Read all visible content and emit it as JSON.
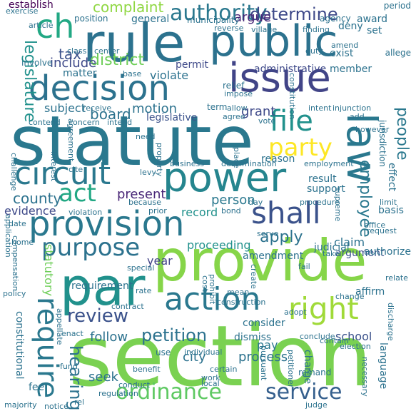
{
  "words": [
    {
      "text": "section",
      "color": "#7ad151",
      "rot": 0
    },
    {
      "text": "statute",
      "color": "#2a788e",
      "rot": 0
    },
    {
      "text": "provide",
      "color": "#86d549",
      "rot": 0
    },
    {
      "text": "rule",
      "color": "#2c728e",
      "rot": 0
    },
    {
      "text": "public",
      "color": "#2c728e",
      "rot": 0
    },
    {
      "text": "law",
      "color": "#2a788e",
      "rot": 90
    },
    {
      "text": "power",
      "color": "#25858e",
      "rot": 0
    },
    {
      "text": "issue",
      "color": "#414487",
      "rot": 0
    },
    {
      "text": "provision",
      "color": "#2a788e",
      "rot": 0
    },
    {
      "text": "par",
      "color": "#21918c",
      "rot": 0
    },
    {
      "text": "decision",
      "color": "#2c728e",
      "rot": 0
    },
    {
      "text": "ch",
      "color": "#22a884",
      "rot": 0
    },
    {
      "text": "circuit",
      "color": "#2a788e",
      "rot": 0
    },
    {
      "text": "shall",
      "color": "#3b528b",
      "rot": 0
    },
    {
      "text": "action",
      "color": "#2a788e",
      "rot": 0
    },
    {
      "text": "require",
      "color": "#2a788e",
      "rot": 90
    },
    {
      "text": "right",
      "color": "#a0da39",
      "rot": 0
    },
    {
      "text": "service",
      "color": "#355f8d",
      "rot": 0
    },
    {
      "text": "ordinance",
      "color": "#5ec962",
      "rot": 0
    },
    {
      "text": "file",
      "color": "#21918c",
      "rot": 0
    },
    {
      "text": "party",
      "color": "#fde725",
      "rot": 0
    },
    {
      "text": "authority",
      "color": "#2a788e",
      "rot": 0
    },
    {
      "text": "purpose",
      "color": "#2c728e",
      "rot": 0
    },
    {
      "text": "act",
      "color": "#22a884",
      "rot": 0
    },
    {
      "text": "determine",
      "color": "#3e4989",
      "rot": 0
    },
    {
      "text": "district",
      "color": "#6ece58",
      "rot": 0
    },
    {
      "text": "complaint",
      "color": "#90d743",
      "rot": 0
    },
    {
      "text": "review",
      "color": "#3b528b",
      "rot": 0
    },
    {
      "text": "hearing",
      "color": "#2c728e",
      "rot": 90
    },
    {
      "text": "petition",
      "color": "#2c728e",
      "rot": 0
    },
    {
      "text": "employee",
      "color": "#2a788e",
      "rot": 90
    },
    {
      "text": "legislature",
      "color": "#21918c",
      "rot": 90
    },
    {
      "text": "people",
      "color": "#2a788e",
      "rot": 90
    },
    {
      "text": "apply",
      "color": "#2c728e",
      "rot": 0
    },
    {
      "text": "county",
      "color": "#2c728e",
      "rot": 0
    },
    {
      "text": "tax",
      "color": "#3b528b",
      "rot": 0
    },
    {
      "text": "board",
      "color": "#2c728e",
      "rot": 0
    },
    {
      "text": "include",
      "color": "#3e4989",
      "rot": 0
    },
    {
      "text": "grant",
      "color": "#3e4989",
      "rot": 0
    },
    {
      "text": "motion",
      "color": "#2c728e",
      "rot": 0
    },
    {
      "text": "argue",
      "color": "#482677",
      "rot": 0
    },
    {
      "text": "present",
      "color": "#482677",
      "rot": 0
    },
    {
      "text": "person",
      "color": "#2a788e",
      "rot": 0
    },
    {
      "text": "proceeding",
      "color": "#21918c",
      "rot": 0
    },
    {
      "text": "claim",
      "color": "#2c728e",
      "rot": 0
    },
    {
      "text": "argument",
      "color": "#3b528b",
      "rot": 0
    },
    {
      "text": "seek",
      "color": "#2c728e",
      "rot": 0
    },
    {
      "text": "city",
      "color": "#2c728e",
      "rot": 0
    },
    {
      "text": "pay",
      "color": "#2a788e",
      "rot": 0
    },
    {
      "text": "process",
      "color": "#2c728e",
      "rot": 0
    },
    {
      "text": "follow",
      "color": "#2c728e",
      "rot": 0
    },
    {
      "text": "record",
      "color": "#21918c",
      "rot": 0
    },
    {
      "text": "subject",
      "color": "#2c728e",
      "rot": 0
    },
    {
      "text": "statutory",
      "color": "#6ece58",
      "rot": 90
    },
    {
      "text": "year",
      "color": "#414487",
      "rot": 0
    },
    {
      "text": "evidence",
      "color": "#3e4989",
      "rot": 0
    },
    {
      "text": "school",
      "color": "#3b528b",
      "rot": 0
    },
    {
      "text": "establish",
      "color": "#440154",
      "rot": 0
    },
    {
      "text": "consider",
      "color": "#2c728e",
      "rot": 0
    },
    {
      "text": "requirement",
      "color": "#2c728e",
      "rot": 0
    },
    {
      "text": "dismiss",
      "color": "#2c728e",
      "rot": 0
    },
    {
      "text": "legislative",
      "color": "#3b528b",
      "rot": 0
    },
    {
      "text": "administrative",
      "color": "#3e4989",
      "rot": 0
    },
    {
      "text": "member",
      "color": "#2c728e",
      "rot": 0
    },
    {
      "text": "violate",
      "color": "#2c728e",
      "rot": 0
    },
    {
      "text": "permit",
      "color": "#3e4989",
      "rot": 0
    },
    {
      "text": "matter",
      "color": "#2c728e",
      "rot": 0
    },
    {
      "text": "general",
      "color": "#2c728e",
      "rot": 0
    },
    {
      "text": "position",
      "color": "#2c728e",
      "rot": 0
    },
    {
      "text": "municipality",
      "color": "#2c728e",
      "rot": 0
    },
    {
      "text": "agency",
      "color": "#2c728e",
      "rot": 0
    },
    {
      "text": "award",
      "color": "#2c728e",
      "rot": 0
    },
    {
      "text": "deny",
      "color": "#2c728e",
      "rot": 0
    },
    {
      "text": "set",
      "color": "#2c728e",
      "rot": 0
    },
    {
      "text": "reverse",
      "color": "#2c728e",
      "rot": 0
    },
    {
      "text": "village",
      "color": "#2c728e",
      "rot": 0
    },
    {
      "text": "finding",
      "color": "#2c728e",
      "rot": 0
    },
    {
      "text": "period",
      "color": "#2c728e",
      "rot": 0
    },
    {
      "text": "exercise",
      "color": "#2c728e",
      "rot": 0
    },
    {
      "text": "article",
      "color": "#2c728e",
      "rot": 0
    },
    {
      "text": "involve",
      "color": "#2c728e",
      "rot": 0
    },
    {
      "text": "class",
      "color": "#2c728e",
      "rot": 0
    },
    {
      "text": "center",
      "color": "#2c728e",
      "rot": 0
    },
    {
      "text": "exist",
      "color": "#2c728e",
      "rot": 0
    },
    {
      "text": "allege",
      "color": "#2c728e",
      "rot": 0
    },
    {
      "text": "duty",
      "color": "#2c728e",
      "rot": 0
    },
    {
      "text": "amend",
      "color": "#2c728e",
      "rot": 0
    },
    {
      "text": "base",
      "color": "#2c728e",
      "rot": 0
    },
    {
      "text": "impose",
      "color": "#2c728e",
      "rot": 0
    },
    {
      "text": "relief",
      "color": "#2c728e",
      "rot": 0
    },
    {
      "text": "allow",
      "color": "#2c728e",
      "rot": 0
    },
    {
      "text": "agree",
      "color": "#2c728e",
      "rot": 0
    },
    {
      "text": "vote",
      "color": "#2c728e",
      "rot": 0
    },
    {
      "text": "term",
      "color": "#2c728e",
      "rot": 0
    },
    {
      "text": "intent",
      "color": "#2c728e",
      "rot": 0
    },
    {
      "text": "injunction",
      "color": "#2c728e",
      "rot": 0
    },
    {
      "text": "add",
      "color": "#2c728e",
      "rot": 0
    },
    {
      "text": "however",
      "color": "#2c728e",
      "rot": 0
    },
    {
      "text": "jurisdiction",
      "color": "#2c728e",
      "rot": 90
    },
    {
      "text": "receive",
      "color": "#2c728e",
      "rot": 0
    },
    {
      "text": "concern",
      "color": "#2c728e",
      "rot": 0
    },
    {
      "text": "intend",
      "color": "#2c728e",
      "rot": 0
    },
    {
      "text": "contend",
      "color": "#2c728e",
      "rot": 0
    },
    {
      "text": "need",
      "color": "#2c728e",
      "rot": 0
    },
    {
      "text": "place",
      "color": "#2c728e",
      "rot": 90
    },
    {
      "text": "property",
      "color": "#2c728e",
      "rot": 90
    },
    {
      "text": "business",
      "color": "#2c728e",
      "rot": 0
    },
    {
      "text": "determination",
      "color": "#2c728e",
      "rot": 0
    },
    {
      "text": "reason",
      "color": "#2c728e",
      "rot": 0
    },
    {
      "text": "employment",
      "color": "#2c728e",
      "rot": 0
    },
    {
      "text": "result",
      "color": "#2c728e",
      "rot": 0
    },
    {
      "text": "support",
      "color": "#2c728e",
      "rot": 0
    },
    {
      "text": "effect",
      "color": "#2c728e",
      "rot": 90
    },
    {
      "text": "interest",
      "color": "#2c728e",
      "rot": 90
    },
    {
      "text": "cite",
      "color": "#2c728e",
      "rot": 0
    },
    {
      "text": "levy",
      "color": "#2c728e",
      "rot": 0
    },
    {
      "text": "agreement",
      "color": "#2c728e",
      "rot": 90
    },
    {
      "text": "challenge",
      "color": "#2c728e",
      "rot": 90
    },
    {
      "text": "application",
      "color": "#2c728e",
      "rot": 90
    },
    {
      "text": "because",
      "color": "#2c728e",
      "rot": 0
    },
    {
      "text": "violation",
      "color": "#2c728e",
      "rot": 0
    },
    {
      "text": "prior",
      "color": "#2c728e",
      "rot": 0
    },
    {
      "text": "bond",
      "color": "#2c728e",
      "rot": 0
    },
    {
      "text": "day",
      "color": "#2c728e",
      "rot": 0
    },
    {
      "text": "procedure",
      "color": "#2c728e",
      "rot": 0
    },
    {
      "text": "supreme",
      "color": "#2c728e",
      "rot": 90
    },
    {
      "text": "limit",
      "color": "#2c728e",
      "rot": 0
    },
    {
      "text": "basis",
      "color": "#2c728e",
      "rot": 0
    },
    {
      "text": "date",
      "color": "#2c728e",
      "rot": 0
    },
    {
      "text": "compensation",
      "color": "#2c728e",
      "rot": 90
    },
    {
      "text": "home",
      "color": "#2c728e",
      "rot": 0
    },
    {
      "text": "amendment",
      "color": "#2c728e",
      "rot": 0
    },
    {
      "text": "serve",
      "color": "#2c728e",
      "rot": 0
    },
    {
      "text": "judicial",
      "color": "#2c728e",
      "rot": 0
    },
    {
      "text": "authorize",
      "color": "#2c728e",
      "rot": 0
    },
    {
      "text": "office",
      "color": "#2c728e",
      "rot": 0
    },
    {
      "text": "request",
      "color": "#2c728e",
      "rot": 0
    },
    {
      "text": "take",
      "color": "#2c728e",
      "rot": 0
    },
    {
      "text": "special",
      "color": "#2c728e",
      "rot": 0
    },
    {
      "text": "prohibit",
      "color": "#2c728e",
      "rot": 90
    },
    {
      "text": "cost",
      "color": "#2c728e",
      "rot": 90
    },
    {
      "text": "create",
      "color": "#2c728e",
      "rot": 90
    },
    {
      "text": "fail",
      "color": "#2c728e",
      "rot": 0
    },
    {
      "text": "relate",
      "color": "#2c728e",
      "rot": 0
    },
    {
      "text": "policy",
      "color": "#2c728e",
      "rot": 0
    },
    {
      "text": "rate",
      "color": "#2c728e",
      "rot": 0
    },
    {
      "text": "contract",
      "color": "#2c728e",
      "rot": 0
    },
    {
      "text": "mean",
      "color": "#2c728e",
      "rot": 0
    },
    {
      "text": "construction",
      "color": "#2c728e",
      "rot": 0
    },
    {
      "text": "change",
      "color": "#2c728e",
      "rot": 0
    },
    {
      "text": "affirm",
      "color": "#2c728e",
      "rot": 0
    },
    {
      "text": "discharge",
      "color": "#2c728e",
      "rot": 90
    },
    {
      "text": "appellate",
      "color": "#2c728e",
      "rot": 90
    },
    {
      "text": "adopt",
      "color": "#2c728e",
      "rot": 0
    },
    {
      "text": "use",
      "color": "#2c728e",
      "rot": 0
    },
    {
      "text": "individual",
      "color": "#2c728e",
      "rot": 0
    },
    {
      "text": "conclude",
      "color": "#2c728e",
      "rot": 0
    },
    {
      "text": "contain",
      "color": "#2c728e",
      "rot": 0
    },
    {
      "text": "election",
      "color": "#2c728e",
      "rot": 0
    },
    {
      "text": "constitutional",
      "color": "#2c728e",
      "rot": 90
    },
    {
      "text": "enact",
      "color": "#2c728e",
      "rot": 0
    },
    {
      "text": "certain",
      "color": "#2c728e",
      "rot": 0
    },
    {
      "text": "charge",
      "color": "#2c728e",
      "rot": 90
    },
    {
      "text": "petitioner",
      "color": "#2c728e",
      "rot": 90
    },
    {
      "text": "language",
      "color": "#2c728e",
      "rot": 90
    },
    {
      "text": "necessary",
      "color": "#2c728e",
      "rot": 90
    },
    {
      "text": "fund",
      "color": "#2c728e",
      "rot": 0
    },
    {
      "text": "benefit",
      "color": "#2c728e",
      "rot": 0
    },
    {
      "text": "work",
      "color": "#2c728e",
      "rot": 0
    },
    {
      "text": "pursuant",
      "color": "#2c728e",
      "rot": 90
    },
    {
      "text": "remand",
      "color": "#2c728e",
      "rot": 0
    },
    {
      "text": "fee",
      "color": "#2c728e",
      "rot": 0
    },
    {
      "text": "regulation",
      "color": "#2c728e",
      "rot": 0
    },
    {
      "text": "conduct",
      "color": "#2c728e",
      "rot": 0
    },
    {
      "text": "local",
      "color": "#2c728e",
      "rot": 0
    },
    {
      "text": "rel",
      "color": "#2c728e",
      "rot": 0
    },
    {
      "text": "judge",
      "color": "#2c728e",
      "rot": 0
    },
    {
      "text": "majority",
      "color": "#2c728e",
      "rot": 0
    },
    {
      "text": "notice",
      "color": "#2c728e",
      "rot": 0
    },
    {
      "text": "constitution",
      "color": "#2c728e",
      "rot": 90
    }
  ]
}
